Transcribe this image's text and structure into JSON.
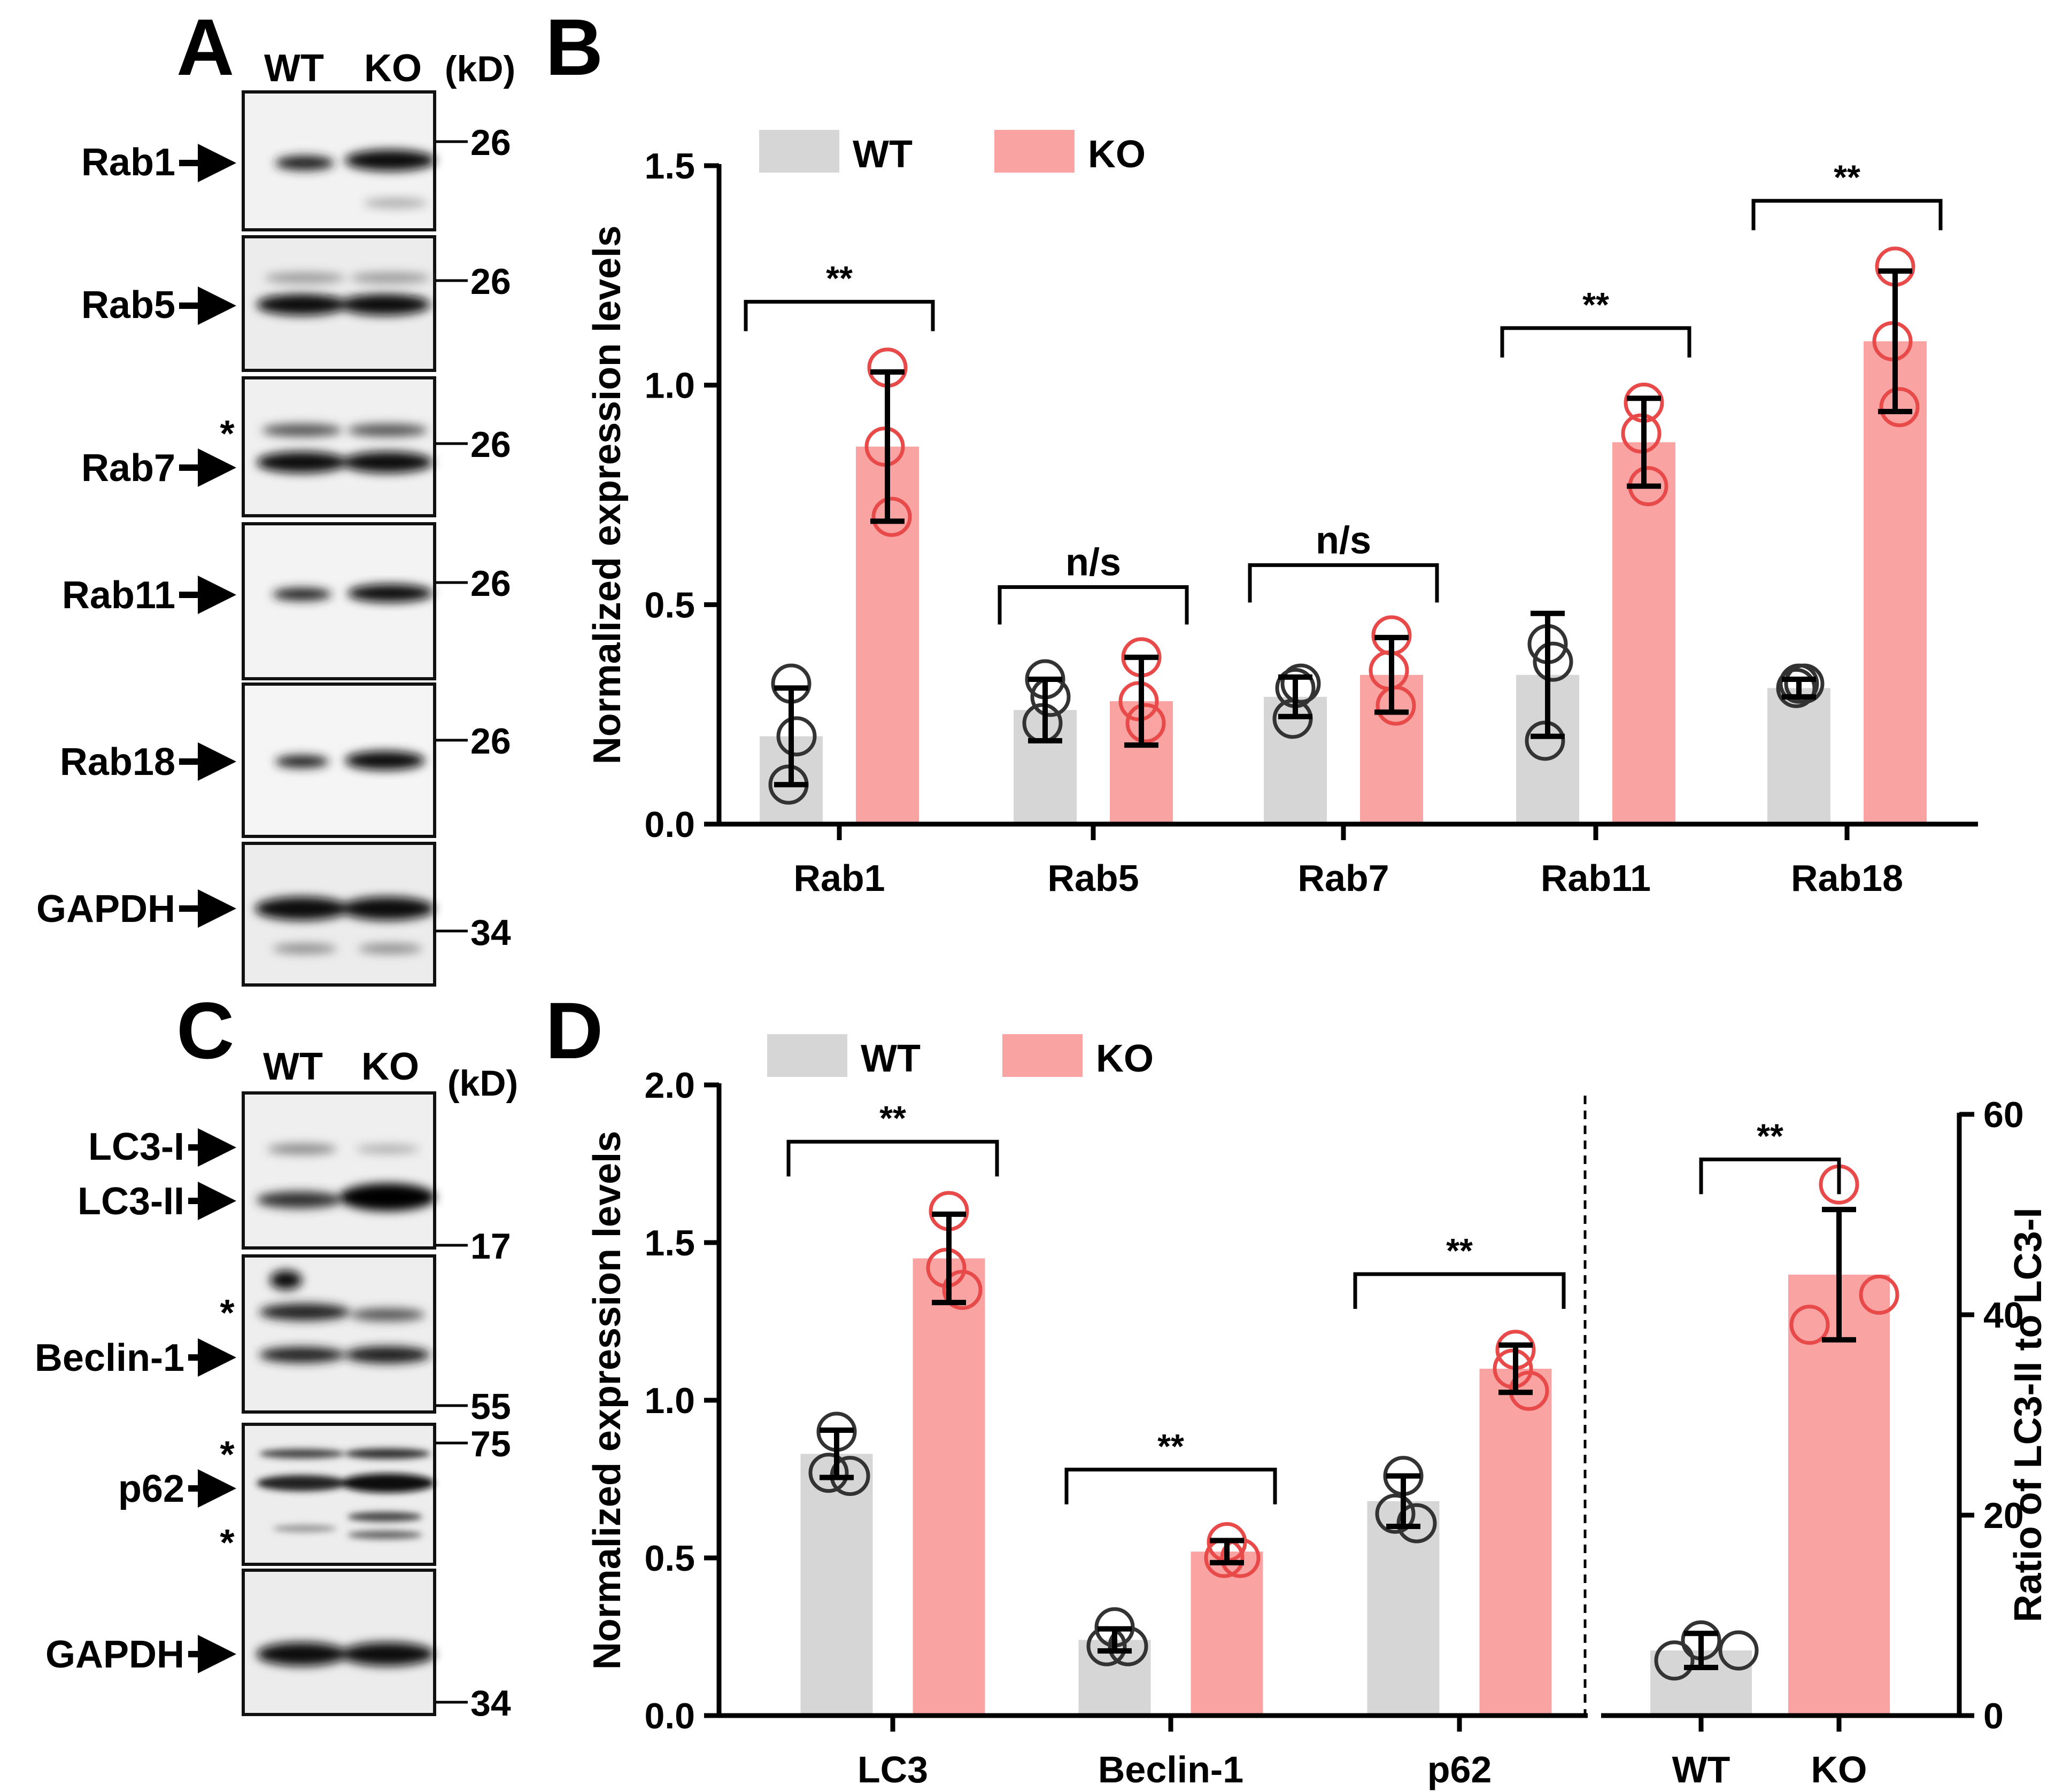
{
  "panels": {
    "A": {
      "letter": "A",
      "lanes": [
        "WT",
        "KO"
      ],
      "unit": "(kD)",
      "blots": [
        {
          "label": "Rab1",
          "marker": "26",
          "star": ""
        },
        {
          "label": "Rab5",
          "marker": "26",
          "star": ""
        },
        {
          "label": "Rab7",
          "marker": "26",
          "star": "*"
        },
        {
          "label": "Rab11",
          "marker": "26",
          "star": ""
        },
        {
          "label": "Rab18",
          "marker": "26",
          "star": ""
        },
        {
          "label": "GAPDH",
          "marker": "34",
          "star": ""
        }
      ]
    },
    "C": {
      "letter": "C",
      "lanes": [
        "WT",
        "KO"
      ],
      "unit": "(kD)",
      "blots": [
        {
          "labels": [
            "LC3-I",
            "LC3-II"
          ],
          "marker": "17",
          "stars": []
        },
        {
          "labels": [
            "Beclin-1"
          ],
          "marker": "55",
          "stars": [
            "*"
          ]
        },
        {
          "labels": [
            "p62"
          ],
          "marker": "75",
          "stars": [
            "*",
            "*"
          ]
        },
        {
          "labels": [
            "GAPDH"
          ],
          "marker": "34",
          "stars": []
        }
      ]
    },
    "B": {
      "letter": "B"
    },
    "D": {
      "letter": "D"
    }
  },
  "colors": {
    "wt_fill": "#d6d6d6",
    "ko_fill": "#f9a3a3",
    "ko_point": "#e84a4a",
    "wt_point": "#333333"
  },
  "chart_data": [
    {
      "id": "B",
      "type": "bar",
      "ylabel": "Normalized expression levels",
      "ylim": [
        0,
        1.5
      ],
      "yticks": [
        "0.0",
        "0.5",
        "1.0",
        "1.5"
      ],
      "legend": {
        "position": "top-left",
        "entries": [
          "WT",
          "KO"
        ]
      },
      "categories": [
        "Rab1",
        "Rab5",
        "Rab7",
        "Rab11",
        "Rab18"
      ],
      "series": [
        {
          "name": "WT",
          "values": [
            0.2,
            0.26,
            0.29,
            0.34,
            0.31
          ],
          "errors": [
            0.11,
            0.07,
            0.045,
            0.14,
            0.02
          ],
          "points": [
            [
              0.32,
              0.2,
              0.09
            ],
            [
              0.33,
              0.29,
              0.23
            ],
            [
              0.31,
              0.32,
              0.24
            ],
            [
              0.41,
              0.37,
              0.19
            ],
            [
              0.32,
              0.32,
              0.31
            ]
          ]
        },
        {
          "name": "KO",
          "values": [
            0.86,
            0.28,
            0.34,
            0.87,
            1.1
          ],
          "errors": [
            0.17,
            0.1,
            0.085,
            0.1,
            0.16
          ],
          "points": [
            [
              1.04,
              0.86,
              0.7
            ],
            [
              0.38,
              0.28,
              0.23
            ],
            [
              0.43,
              0.35,
              0.27
            ],
            [
              0.96,
              0.89,
              0.77
            ],
            [
              1.27,
              1.1,
              0.95
            ]
          ]
        }
      ],
      "significance": [
        "**",
        "n/s",
        "n/s",
        "**",
        "**"
      ]
    },
    {
      "id": "D-left",
      "type": "bar",
      "ylabel": "Normalized expression levels",
      "ylim": [
        0,
        2.0
      ],
      "yticks": [
        "0.0",
        "0.5",
        "1.0",
        "1.5",
        "2.0"
      ],
      "legend": {
        "position": "top-left",
        "entries": [
          "WT",
          "KO"
        ]
      },
      "categories": [
        "LC3",
        "Beclin-1",
        "p62"
      ],
      "series": [
        {
          "name": "WT",
          "values": [
            0.83,
            0.24,
            0.68
          ],
          "errors": [
            0.075,
            0.035,
            0.08
          ],
          "points": [
            [
              0.9,
              0.77,
              0.76
            ],
            [
              0.28,
              0.22,
              0.22
            ],
            [
              0.76,
              0.64,
              0.61
            ]
          ]
        },
        {
          "name": "KO",
          "values": [
            1.45,
            0.52,
            1.1
          ],
          "errors": [
            0.14,
            0.035,
            0.075
          ],
          "points": [
            [
              1.6,
              1.42,
              1.35
            ],
            [
              0.55,
              0.5,
              0.5
            ],
            [
              1.16,
              1.1,
              1.03
            ]
          ]
        }
      ],
      "significance": [
        "**",
        "**",
        "**"
      ]
    },
    {
      "id": "D-right",
      "type": "bar",
      "ylabel": "Ratio of LC3-II to LC3-I",
      "ylim": [
        0,
        60
      ],
      "yticks": [
        "0",
        "20",
        "40",
        "60"
      ],
      "categories": [
        "WT",
        "KO"
      ],
      "values": [
        6.5,
        44
      ],
      "errors": [
        1.7,
        6.5
      ],
      "points": [
        [
          7.5,
          6.5,
          5.5
        ],
        [
          53,
          42,
          39
        ]
      ],
      "significance": "**"
    }
  ]
}
